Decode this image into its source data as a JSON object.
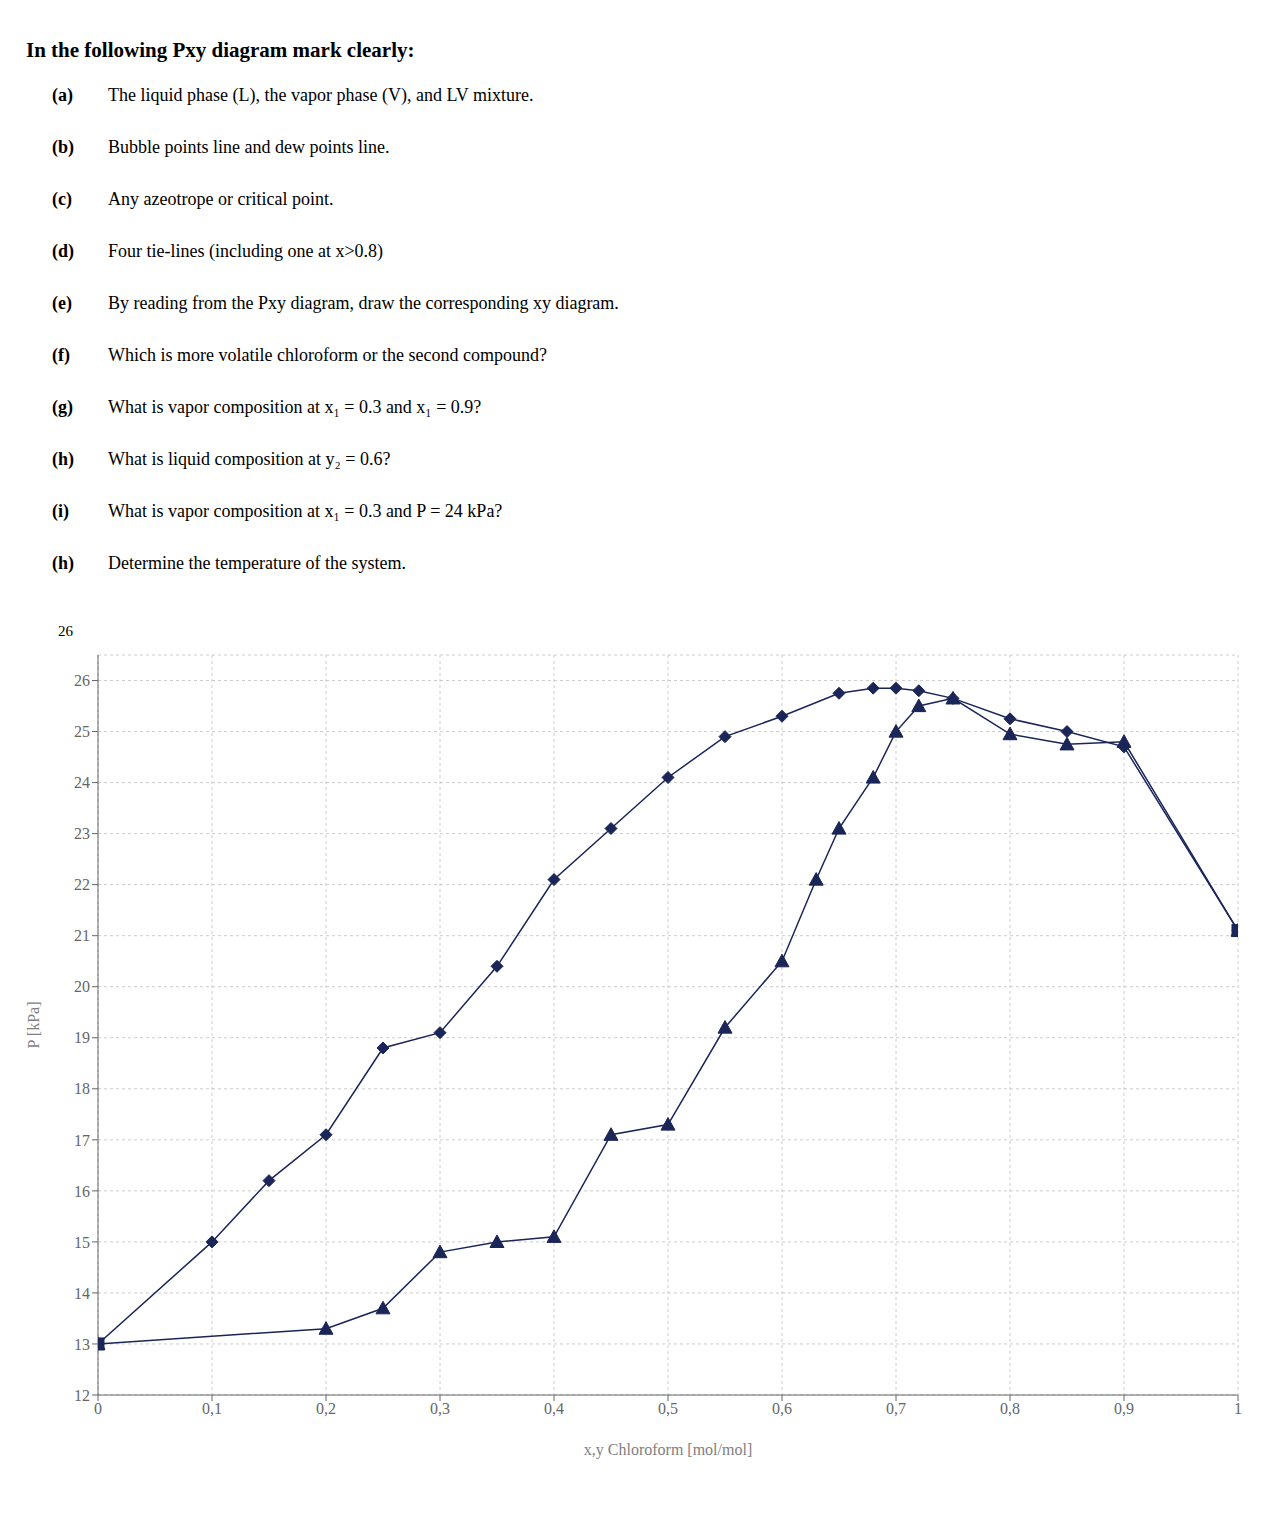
{
  "chart_data": {
    "type": "line",
    "title": "In the following Pxy diagram mark clearly:",
    "text_lines": [
      {
        "label": "(a)",
        "text": "The liquid phase (L), the vapor phase (V), and LV mixture."
      },
      {
        "label": "(b)",
        "text": "Bubble points line and dew points line."
      },
      {
        "label": "(c)",
        "text": "Any azeotrope or critical point."
      },
      {
        "label": "(d)",
        "text": "Four tie-lines (including one at x>0.8)"
      },
      {
        "label": "(e)",
        "text": "By reading from the Pxy diagram, draw the corresponding xy diagram."
      },
      {
        "label": "(f)",
        "text": "Which is more volatile chloroform or the second compound?"
      },
      {
        "label": "(g)",
        "text": "What is vapor composition at x₁ = 0.3 and x₁ = 0.9?"
      },
      {
        "label": "(h)",
        "text": "What is liquid composition at y₂ = 0.6?"
      },
      {
        "label": "(i)",
        "text": "What is vapor composition at x₁ = 0.3 and P = 24 kPa?"
      },
      {
        "label": "(h)",
        "text": "Determine the temperature of the system."
      }
    ],
    "x_label": "x,y Chloroform [mol/mol]",
    "y_label": "P [kPa]",
    "series": [
      {
        "type": "line",
        "color": "#1a2558",
        "marker": "diamond",
        "line_style": "solid",
        "x": [
          0.0,
          0.1,
          0.15,
          0.2,
          0.25,
          0.3,
          0.35,
          0.4,
          0.45,
          0.5,
          0.55,
          0.6,
          0.65,
          0.68,
          0.7,
          0.72,
          0.75,
          0.8,
          0.85,
          0.9,
          1.0
        ],
        "values": [
          13.0,
          15.0,
          16.2,
          17.1,
          18.8,
          19.1,
          20.4,
          22.1,
          23.1,
          24.1,
          24.9,
          25.3,
          25.75,
          25.85,
          25.85,
          25.8,
          25.65,
          25.25,
          25.0,
          24.7,
          21.1
        ]
      },
      {
        "type": "line",
        "color": "#1a2558",
        "marker": "triangle",
        "line_style": "solid",
        "x": [
          0.0,
          0.2,
          0.25,
          0.3,
          0.35,
          0.4,
          0.45,
          0.5,
          0.55,
          0.6,
          0.63,
          0.65,
          0.68,
          0.7,
          0.72,
          0.75,
          0.8,
          0.85,
          0.9,
          1.0
        ],
        "values": [
          13.0,
          13.3,
          13.7,
          14.8,
          15.0,
          15.1,
          17.1,
          17.3,
          19.2,
          20.5,
          22.1,
          23.1,
          24.1,
          25.0,
          25.5,
          25.65,
          24.95,
          24.75,
          24.8,
          21.1
        ]
      },
      {
        "type": "scatter",
        "color": "#1a2558",
        "marker": "square",
        "x": [
          0.0,
          1.0
        ],
        "values": [
          13.0,
          21.1
        ]
      }
    ],
    "xlim": [
      0,
      1
    ],
    "ylim": [
      12,
      26.5
    ],
    "xticks": [
      0,
      {
        "value": 0.1,
        "label": "0,1"
      },
      {
        "value": 0.2,
        "label": "0,2"
      },
      {
        "value": 0.3,
        "label": "0,3"
      },
      {
        "value": 0.4,
        "label": "0,4"
      },
      {
        "value": 0.5,
        "label": "0,5"
      },
      {
        "value": 0.6,
        "label": "0,6"
      },
      {
        "value": 0.7,
        "label": "0,7"
      },
      {
        "value": 0.8,
        "label": "0,8"
      },
      {
        "value": 0.9,
        "label": "0,9"
      },
      1
    ],
    "yticks": [
      12,
      13,
      14,
      15,
      16,
      17,
      18,
      19,
      20,
      21,
      22,
      23,
      24,
      25,
      26
    ],
    "grid": true,
    "annotations": [
      "26"
    ]
  }
}
